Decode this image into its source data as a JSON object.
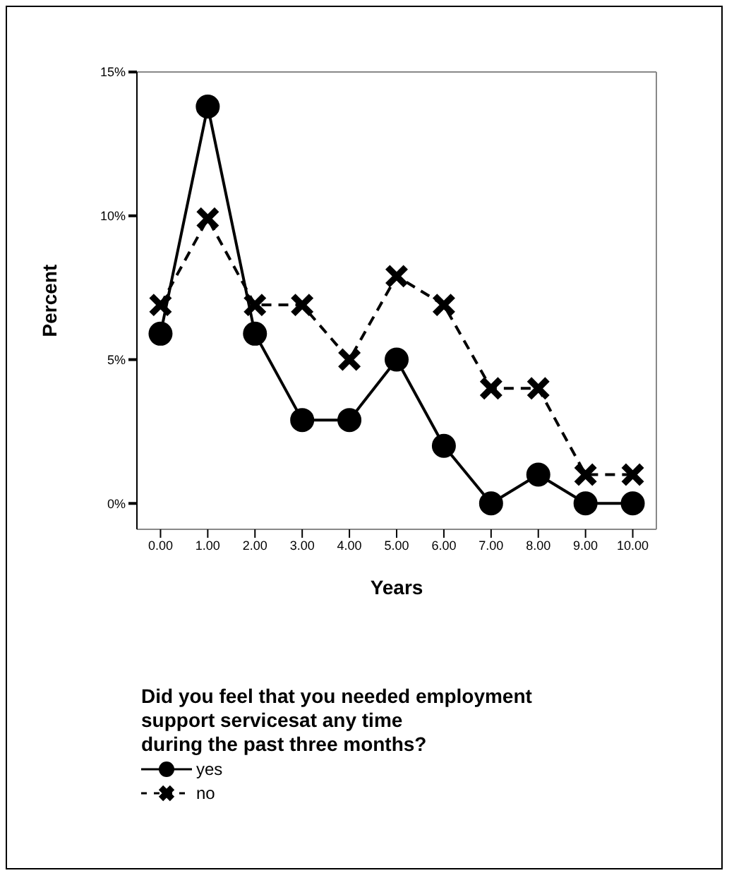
{
  "chart_data": {
    "type": "line",
    "xlabel": "Years",
    "ylabel": "Percent",
    "legend_title": "Did you feel that you needed employment\nsupport servicesat any time\nduring the past three months?",
    "categories": [
      "0.00",
      "1.00",
      "2.00",
      "3.00",
      "4.00",
      "5.00",
      "6.00",
      "7.00",
      "8.00",
      "9.00",
      "10.00"
    ],
    "series": [
      {
        "name": "yes",
        "color": "#000000",
        "marker": "circle",
        "line_style": "solid",
        "values": [
          5.9,
          13.8,
          5.9,
          2.9,
          2.9,
          5.0,
          2.0,
          0,
          1.0,
          0,
          0
        ]
      },
      {
        "name": "no",
        "color": "#000000",
        "marker": "cross",
        "line_style": "dashed",
        "values": [
          6.9,
          9.9,
          6.9,
          6.9,
          5.0,
          7.9,
          6.9,
          4.0,
          4.0,
          1.0,
          1.0
        ]
      }
    ],
    "ylim": [
      -0.9,
      15
    ],
    "yticks": [
      {
        "value": 0,
        "label": "0%"
      },
      {
        "value": 5,
        "label": "5%"
      },
      {
        "value": 10,
        "label": "10%"
      },
      {
        "value": 15,
        "label": "15%"
      }
    ],
    "grid": false,
    "legend": "bottom left"
  }
}
